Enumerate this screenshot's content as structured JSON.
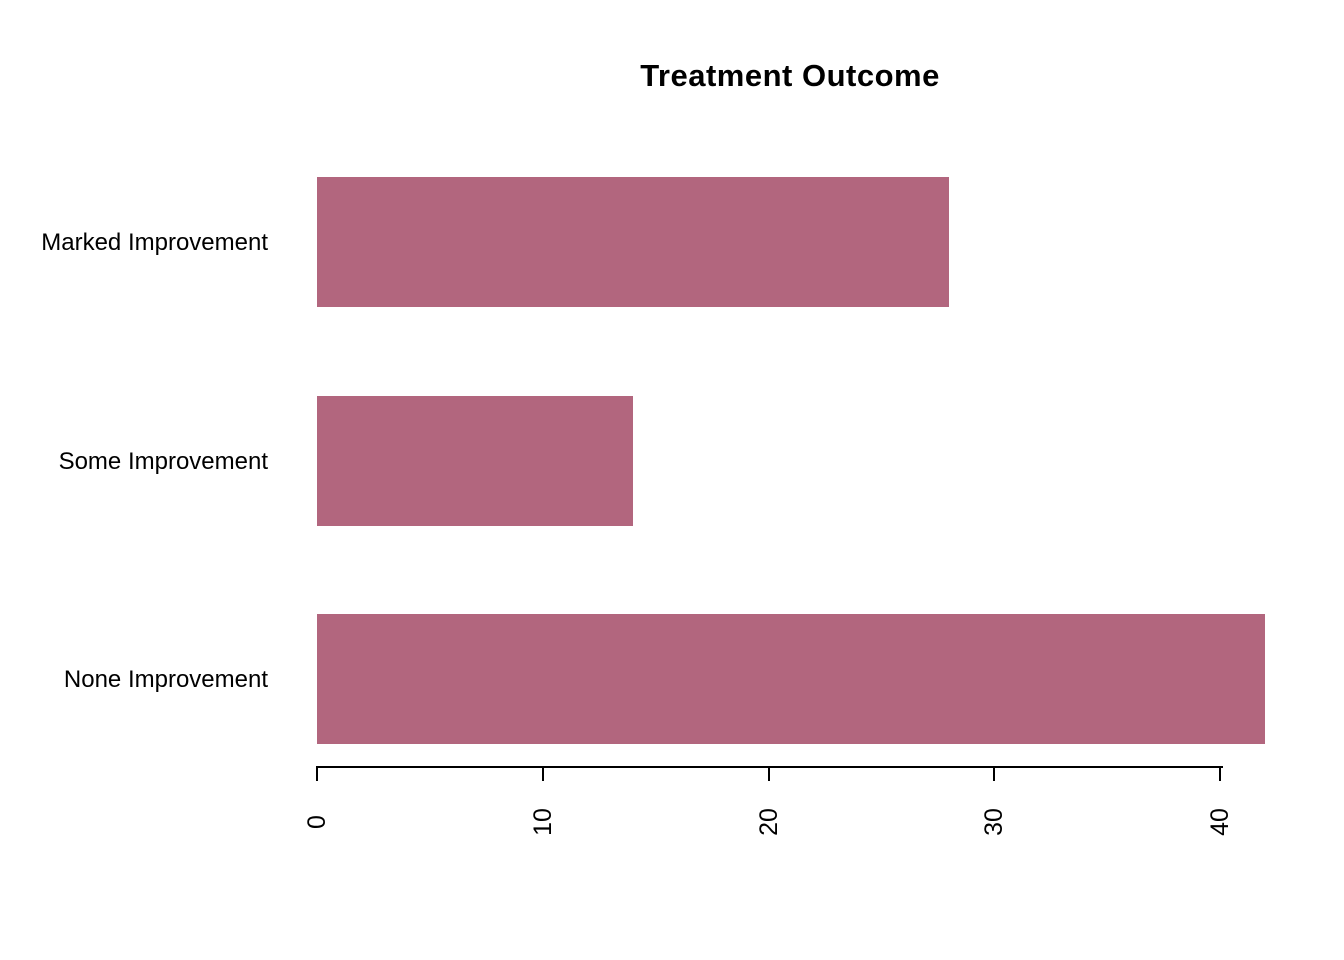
{
  "chart_data": {
    "type": "bar",
    "orientation": "horizontal",
    "title": "Treatment Outcome",
    "categories": [
      "Marked Improvement",
      "Some Improvement",
      "None Improvement"
    ],
    "values": [
      28,
      14,
      42
    ],
    "xlabel": "",
    "ylabel": "",
    "xlim": [
      0,
      42
    ],
    "x_ticks": [
      0,
      10,
      20,
      30,
      40
    ],
    "grid": false,
    "legend": false,
    "bar_color": "#B2667E",
    "axis_color": "#000000",
    "text_color": "#000000",
    "background": "#FFFFFF"
  }
}
